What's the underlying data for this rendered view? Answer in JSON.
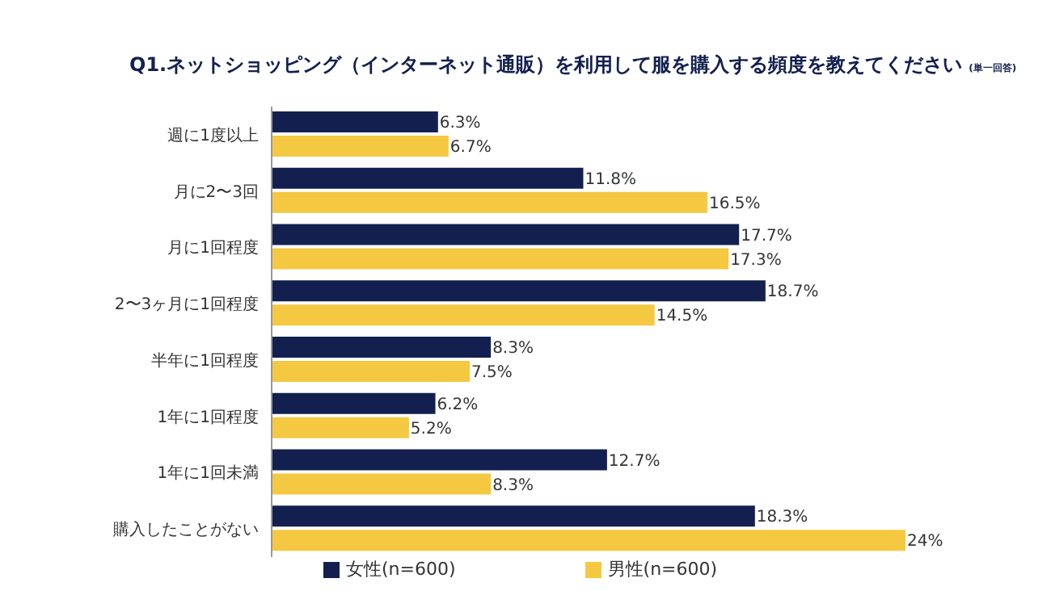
{
  "chart_data": {
    "type": "bar",
    "orientation": "horizontal",
    "title": "Q1.ネットショッピング（インターネット通販）を利用して服を購入する頻度を教えてください",
    "subtitle": "(単一回答)",
    "categories": [
      "週に1度以上",
      "月に2〜3回",
      "月に1回程度",
      "2〜3ヶ月に1回程度",
      "半年に1回程度",
      "1年に1回程度",
      "1年に1回未満",
      "購入したことがない"
    ],
    "series": [
      {
        "name": "女性(n=600)",
        "color": "#13204f",
        "values": [
          6.3,
          11.8,
          17.7,
          18.7,
          8.3,
          6.2,
          12.7,
          18.3
        ],
        "value_labels": [
          "6.3%",
          "11.8%",
          "17.7%",
          "18.7%",
          "8.3%",
          "6.2%",
          "12.7%",
          "18.3%"
        ]
      },
      {
        "name": "男性(n=600)",
        "color": "#f5c842",
        "values": [
          6.7,
          16.5,
          17.3,
          14.5,
          7.5,
          5.2,
          8.3,
          24
        ],
        "value_labels": [
          "6.7%",
          "16.5%",
          "17.3%",
          "14.5%",
          "7.5%",
          "5.2%",
          "8.3%",
          "24%"
        ]
      }
    ],
    "legend": "bottom",
    "grid": false
  }
}
